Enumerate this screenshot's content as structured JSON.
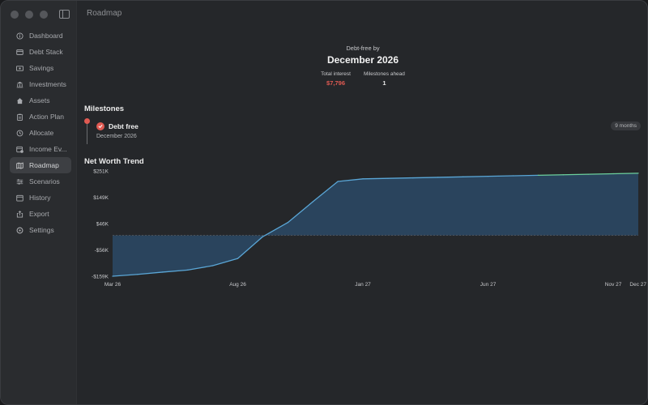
{
  "window": {
    "title": "Roadmap"
  },
  "sidebar": {
    "items": [
      {
        "label": "Dashboard",
        "icon": "info-circle-icon",
        "active": false
      },
      {
        "label": "Debt Stack",
        "icon": "credit-card-icon",
        "active": false
      },
      {
        "label": "Savings",
        "icon": "banknote-icon",
        "active": false
      },
      {
        "label": "Investments",
        "icon": "bank-building-icon",
        "active": false
      },
      {
        "label": "Assets",
        "icon": "house-icon",
        "active": false
      },
      {
        "label": "Action Plan",
        "icon": "clipboard-icon",
        "active": false
      },
      {
        "label": "Allocate",
        "icon": "clock-arrow-icon",
        "active": false
      },
      {
        "label": "Income Ev...",
        "icon": "calendar-money-icon",
        "active": false
      },
      {
        "label": "Roadmap",
        "icon": "map-icon",
        "active": true
      },
      {
        "label": "Scenarios",
        "icon": "sliders-icon",
        "active": false
      },
      {
        "label": "History",
        "icon": "calendar-icon",
        "active": false
      },
      {
        "label": "Export",
        "icon": "share-icon",
        "active": false
      },
      {
        "label": "Settings",
        "icon": "gear-icon",
        "active": false
      }
    ]
  },
  "summary": {
    "kicker": "Debt-free by",
    "date": "December 2026",
    "total_interest_label": "Total interest",
    "total_interest_value": "$7,796",
    "milestones_ahead_label": "Milestones ahead",
    "milestones_ahead_value": "1"
  },
  "milestones": {
    "title": "Milestones",
    "items": [
      {
        "name": "Debt free",
        "date": "December 2026",
        "badge": "9 months"
      }
    ]
  },
  "chart_data": {
    "type": "area",
    "title": "Net Worth Trend",
    "y_tick_labels": [
      "$251K",
      "$149K",
      "$46K",
      "-$56K",
      "-$159K"
    ],
    "y_tick_values": [
      251,
      149,
      46,
      -56,
      -159
    ],
    "ylim": [
      -159,
      251
    ],
    "baseline": 0,
    "x_tick_labels": [
      "Mar 26",
      "Aug 26",
      "Jan 27",
      "Jun 27",
      "Nov 27",
      "Dec 27"
    ],
    "x_tick_index": [
      0,
      5,
      10,
      15,
      20,
      21
    ],
    "series": [
      {
        "values": [
          -159,
          -152,
          -143,
          -135,
          -118,
          -90,
          -5,
          50,
          131,
          210,
          220,
          222,
          224,
          226,
          228,
          230,
          232,
          234,
          236,
          238,
          240,
          242
        ]
      }
    ],
    "colors": {
      "line_below": "#5aa6d6",
      "line_above": "#6ccf9c",
      "fill": "#2c4a66",
      "baseline": "#50555c"
    },
    "grid": false
  }
}
